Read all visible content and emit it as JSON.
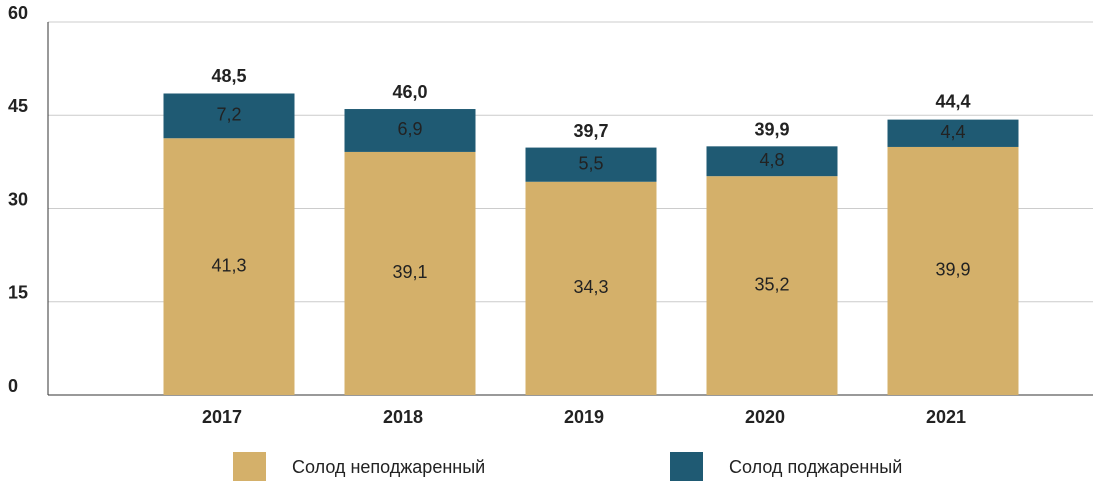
{
  "chart_data": {
    "type": "stacked_bar",
    "categories": [
      "2017",
      "2018",
      "2019",
      "2020",
      "2021"
    ],
    "series": [
      {
        "name": "Солод неподжаренный",
        "color": "#d4b06a",
        "values": [
          41.3,
          39.1,
          34.3,
          35.2,
          39.9
        ],
        "value_labels": [
          "41,3",
          "39,1",
          "34,3",
          "35,2",
          "39,9"
        ]
      },
      {
        "name": "Солод поджаренный",
        "color": "#1f5a73",
        "values": [
          7.2,
          6.9,
          5.5,
          4.8,
          4.4
        ],
        "value_labels": [
          "7,2",
          "6,9",
          "5,5",
          "4,8",
          "4,4"
        ]
      }
    ],
    "totals": [
      48.5,
      46.0,
      39.7,
      39.9,
      44.4
    ],
    "total_labels": [
      "48,5",
      "46,0",
      "39,7",
      "39,9",
      "44,4"
    ],
    "ylim": [
      0,
      60
    ],
    "yticks": [
      0,
      15,
      30,
      45,
      60
    ],
    "grid": true,
    "legend": "bottom"
  }
}
